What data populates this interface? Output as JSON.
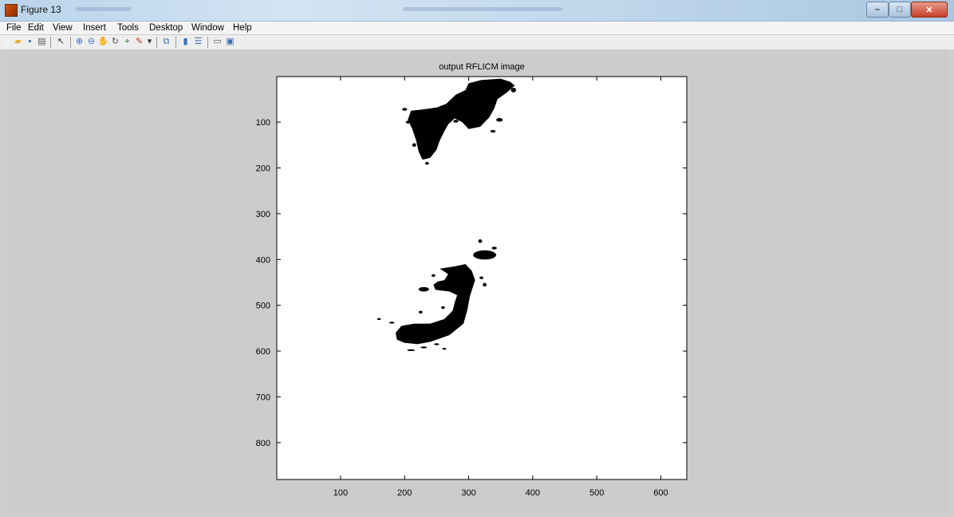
{
  "window": {
    "title": "Figure 13",
    "icon": "matlab-figure-icon",
    "controls": {
      "minimize": "–",
      "maximize": "□",
      "close": "✕"
    }
  },
  "menu": [
    "File",
    "Edit",
    "View",
    "Insert",
    "Tools",
    "Desktop",
    "Window",
    "Help"
  ],
  "toolbar": {
    "icons": [
      {
        "name": "new-figure-icon",
        "glyph": "▯",
        "color": "#ffffff"
      },
      {
        "name": "open-file-icon",
        "glyph": "▰",
        "color": "#e0b030"
      },
      {
        "name": "save-icon",
        "glyph": "▪",
        "color": "#2a5fb0"
      },
      {
        "name": "print-icon",
        "glyph": "▤",
        "color": "#555555"
      },
      {
        "name": "edit-plot-arrow-icon",
        "glyph": "↖",
        "color": "#333333"
      },
      {
        "name": "zoom-in-icon",
        "glyph": "⊕",
        "color": "#3a6fb5"
      },
      {
        "name": "zoom-out-icon",
        "glyph": "⊖",
        "color": "#3a6fb5"
      },
      {
        "name": "pan-icon",
        "glyph": "✋",
        "color": "#b07a3a"
      },
      {
        "name": "rotate-3d-icon",
        "glyph": "↻",
        "color": "#555555"
      },
      {
        "name": "data-cursor-icon",
        "glyph": "⌖",
        "color": "#3a7a3a"
      },
      {
        "name": "brush-icon",
        "glyph": "✎",
        "color": "#c0392b"
      },
      {
        "name": "brush-dropdown-icon",
        "glyph": "▾",
        "color": "#333333"
      },
      {
        "name": "link-plot-icon",
        "glyph": "⧉",
        "color": "#3a6fb5"
      },
      {
        "name": "insert-colorbar-icon",
        "glyph": "▮",
        "color": "#3a6fb5"
      },
      {
        "name": "insert-legend-icon",
        "glyph": "☰",
        "color": "#3a6fb5"
      },
      {
        "name": "hide-plot-tools-icon",
        "glyph": "▭",
        "color": "#555555"
      },
      {
        "name": "show-plot-tools-icon",
        "glyph": "▣",
        "color": "#3a6fb5"
      }
    ]
  },
  "axes": {
    "title": "output RFLICM image",
    "x_ticks": [
      "100",
      "200",
      "300",
      "400",
      "500",
      "600"
    ],
    "y_ticks": [
      "100",
      "200",
      "300",
      "400",
      "500",
      "600",
      "700",
      "800"
    ]
  },
  "chart_data": {
    "type": "binary-image",
    "title": "output RFLICM image",
    "xlim": [
      0.5,
      640.5
    ],
    "ylim": [
      0.5,
      880.5
    ],
    "x_ticks": [
      100,
      200,
      300,
      400,
      500,
      600
    ],
    "y_ticks": [
      100,
      200,
      300,
      400,
      500,
      600,
      700,
      800
    ],
    "y_direction": "reverse",
    "colors": {
      "background": "#ffffff",
      "foreground": "#000000"
    },
    "regions": [
      {
        "name": "upper-region",
        "outline": [
          [
            210,
            75
          ],
          [
            230,
            72
          ],
          [
            250,
            68
          ],
          [
            265,
            60
          ],
          [
            280,
            40
          ],
          [
            295,
            30
          ],
          [
            300,
            15
          ],
          [
            320,
            8
          ],
          [
            350,
            5
          ],
          [
            365,
            12
          ],
          [
            372,
            20
          ],
          [
            360,
            35
          ],
          [
            345,
            50
          ],
          [
            340,
            70
          ],
          [
            332,
            90
          ],
          [
            318,
            110
          ],
          [
            300,
            115
          ],
          [
            290,
            100
          ],
          [
            278,
            92
          ],
          [
            268,
            105
          ],
          [
            262,
            120
          ],
          [
            255,
            140
          ],
          [
            250,
            160
          ],
          [
            240,
            178
          ],
          [
            228,
            182
          ],
          [
            222,
            165
          ],
          [
            218,
            140
          ],
          [
            212,
            115
          ],
          [
            205,
            95
          ]
        ]
      },
      {
        "name": "lower-region",
        "outline": [
          [
            255,
            420
          ],
          [
            278,
            415
          ],
          [
            295,
            410
          ],
          [
            305,
            425
          ],
          [
            310,
            445
          ],
          [
            302,
            480
          ],
          [
            298,
            510
          ],
          [
            292,
            540
          ],
          [
            270,
            565
          ],
          [
            240,
            580
          ],
          [
            220,
            585
          ],
          [
            200,
            582
          ],
          [
            188,
            575
          ],
          [
            186,
            560
          ],
          [
            195,
            545
          ],
          [
            215,
            540
          ],
          [
            240,
            540
          ],
          [
            262,
            530
          ],
          [
            275,
            512
          ],
          [
            278,
            495
          ],
          [
            282,
            478
          ],
          [
            270,
            470
          ],
          [
            258,
            468
          ],
          [
            248,
            466
          ],
          [
            245,
            455
          ],
          [
            252,
            448
          ],
          [
            262,
            445
          ],
          [
            268,
            432
          ]
        ]
      }
    ],
    "blobs": [
      [
        325,
        390,
        18,
        10
      ],
      [
        318,
        360,
        3,
        4
      ],
      [
        340,
        375,
        4,
        3
      ],
      [
        230,
        465,
        8,
        5
      ],
      [
        225,
        515,
        3,
        3
      ],
      [
        180,
        538,
        4,
        2
      ],
      [
        160,
        530,
        3,
        2
      ],
      [
        210,
        598,
        6,
        2
      ],
      [
        230,
        592,
        5,
        2
      ],
      [
        250,
        585,
        4,
        2
      ],
      [
        262,
        595,
        3,
        2
      ],
      [
        325,
        455,
        3,
        4
      ],
      [
        320,
        440,
        3,
        3
      ],
      [
        370,
        30,
        4,
        5
      ],
      [
        348,
        95,
        5,
        4
      ],
      [
        338,
        120,
        4,
        3
      ],
      [
        200,
        72,
        4,
        3
      ],
      [
        205,
        100,
        3,
        3
      ],
      [
        235,
        190,
        3,
        3
      ],
      [
        215,
        150,
        3,
        4
      ],
      [
        280,
        98,
        4,
        3
      ],
      [
        298,
        75,
        3,
        3
      ],
      [
        312,
        62,
        4,
        4
      ],
      [
        245,
        435,
        3,
        3
      ],
      [
        260,
        505,
        3,
        3
      ],
      [
        285,
        440,
        4,
        4
      ]
    ]
  }
}
